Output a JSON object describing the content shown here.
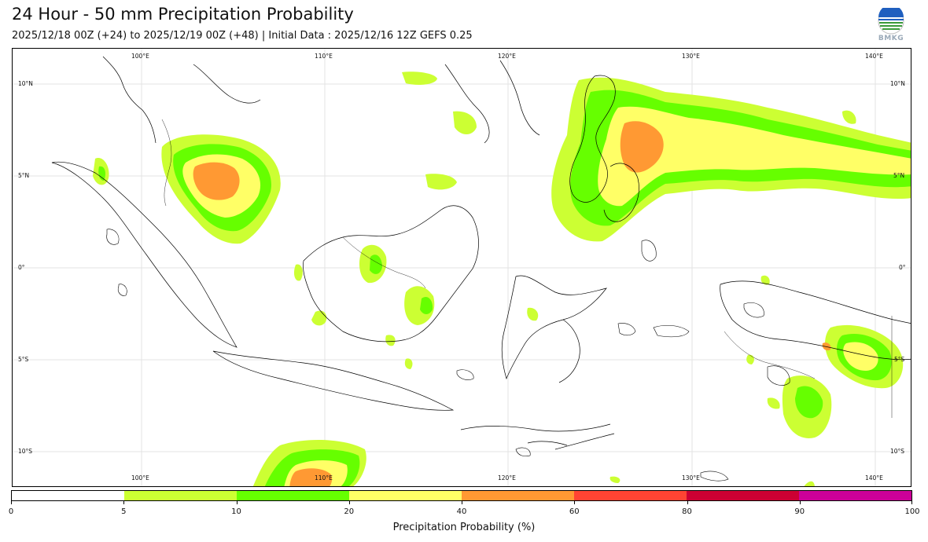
{
  "header": {
    "title": "24 Hour - 50 mm Precipitation Probability",
    "subtitle": "2025/12/18 00Z (+24) to 2025/12/19 00Z (+48) | Initial Data : 2025/12/16 12Z GEFS 0.25",
    "logo_text": "BMKG"
  },
  "map": {
    "lon_labels_top": [
      "100°E",
      "110°E",
      "120°E",
      "130°E",
      "140°E"
    ],
    "lon_labels_bottom": [
      "100°E",
      "110°E",
      "120°E",
      "130°E",
      "140°E"
    ],
    "lat_labels_left": [
      "10°N",
      "5°N",
      "0°",
      "5°S",
      "10°S"
    ],
    "lat_labels_right": [
      "10°N",
      "5°N",
      "0°",
      "5°S",
      "10°S"
    ],
    "colors": {
      "p5": "#ccff33",
      "p10": "#66ff00",
      "p20": "#ffff66",
      "p40": "#ff9933",
      "p60": "#ff4433",
      "p80": "#cc0033",
      "p90": "#cc0099"
    }
  },
  "colorbar": {
    "title": "Precipitation Probability (%)",
    "ticks": [
      "0",
      "5",
      "10",
      "20",
      "40",
      "60",
      "80",
      "90",
      "100"
    ],
    "segments": [
      {
        "color": "#ffffff"
      },
      {
        "color": "#ccff33"
      },
      {
        "color": "#66ff00"
      },
      {
        "color": "#ffff66"
      },
      {
        "color": "#ff9933"
      },
      {
        "color": "#ff4433"
      },
      {
        "color": "#cc0033"
      },
      {
        "color": "#cc0099"
      }
    ]
  }
}
